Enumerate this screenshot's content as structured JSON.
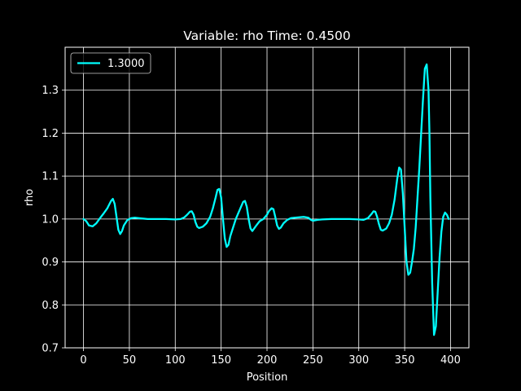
{
  "chart_data": {
    "type": "line",
    "title": "Variable: rho Time: 0.4500",
    "xlabel": "Position",
    "ylabel": "rho",
    "xlim": [
      -20,
      420
    ],
    "ylim": [
      0.7,
      1.4
    ],
    "xticks": [
      0,
      50,
      100,
      150,
      200,
      250,
      300,
      350,
      400
    ],
    "xtick_labels": [
      "0",
      "50",
      "100",
      "150",
      "200",
      "250",
      "300",
      "350",
      "400"
    ],
    "yticks": [
      0.7,
      0.8,
      0.9,
      1.0,
      1.1,
      1.2,
      1.3
    ],
    "ytick_labels": [
      "0.7",
      "0.8",
      "0.9",
      "1.0",
      "1.1",
      "1.2",
      "1.3"
    ],
    "grid": true,
    "legend_position": "upper-left",
    "background_color": "#000000",
    "foreground_color": "#ffffff",
    "series": [
      {
        "name": "1.3000",
        "color": "#00ffff",
        "x": [
          0,
          3,
          6,
          10,
          14,
          18,
          22,
          26,
          30,
          32,
          34,
          36,
          38,
          40,
          42,
          44,
          48,
          52,
          56,
          60,
          70,
          80,
          90,
          100,
          106,
          110,
          113,
          116,
          118,
          120,
          122,
          124,
          126,
          130,
          134,
          138,
          141,
          144,
          146,
          148,
          150,
          152,
          154,
          156,
          158,
          160,
          163,
          166,
          170,
          174,
          176,
          178,
          180,
          182,
          184,
          188,
          192,
          196,
          200,
          202,
          205,
          207,
          209,
          211,
          213,
          215,
          218,
          222,
          226,
          230,
          235,
          240,
          245,
          248,
          250,
          255,
          260,
          270,
          280,
          290,
          300,
          305,
          310,
          314,
          316,
          318,
          320,
          322,
          324,
          326,
          330,
          333,
          336,
          339,
          342,
          344,
          346,
          348,
          350,
          352,
          354,
          356,
          358,
          360,
          362,
          364,
          366,
          368,
          370,
          372,
          374,
          376,
          377,
          378,
          380,
          382,
          384,
          386,
          388,
          390,
          392,
          394,
          396,
          398
        ],
        "values": [
          1.0,
          0.995,
          0.985,
          0.983,
          0.99,
          1.002,
          1.013,
          1.025,
          1.042,
          1.047,
          1.035,
          1.005,
          0.975,
          0.965,
          0.972,
          0.985,
          0.998,
          1.002,
          1.003,
          1.002,
          1.0,
          1.0,
          1.0,
          0.999,
          1.0,
          1.004,
          1.01,
          1.017,
          1.018,
          1.01,
          0.993,
          0.982,
          0.979,
          0.982,
          0.99,
          1.005,
          1.025,
          1.05,
          1.068,
          1.07,
          1.05,
          1.0,
          0.955,
          0.935,
          0.94,
          0.96,
          0.98,
          1.0,
          1.02,
          1.04,
          1.042,
          1.028,
          1.0,
          0.978,
          0.972,
          0.984,
          0.995,
          1.0,
          1.01,
          1.018,
          1.025,
          1.023,
          1.005,
          0.985,
          0.977,
          0.98,
          0.99,
          0.998,
          1.002,
          1.003,
          1.004,
          1.005,
          1.003,
          0.998,
          0.996,
          0.998,
          0.999,
          1.0,
          1.0,
          1.0,
          0.999,
          0.998,
          1.002,
          1.012,
          1.018,
          1.017,
          1.005,
          0.988,
          0.975,
          0.973,
          0.978,
          0.99,
          1.01,
          1.045,
          1.095,
          1.12,
          1.115,
          1.06,
          0.98,
          0.9,
          0.87,
          0.875,
          0.9,
          0.93,
          0.98,
          1.05,
          1.12,
          1.2,
          1.28,
          1.35,
          1.36,
          1.3,
          1.2,
          1.05,
          0.85,
          0.73,
          0.75,
          0.83,
          0.91,
          0.97,
          1.005,
          1.015,
          1.01,
          1.0
        ]
      }
    ]
  }
}
